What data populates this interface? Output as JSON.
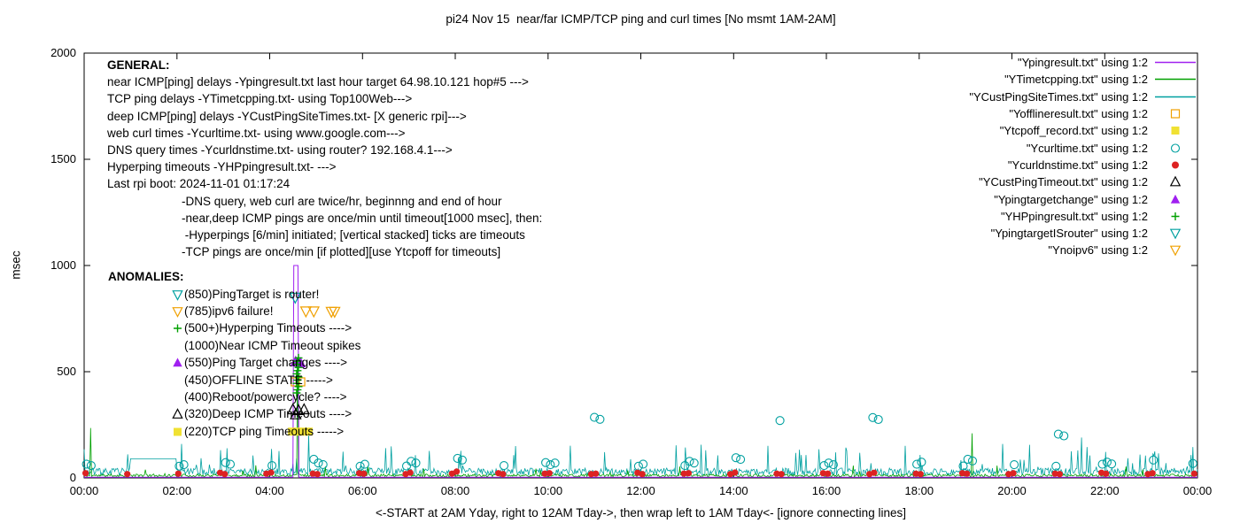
{
  "chart_data": {
    "type": "line",
    "title": "pi24 Nov 15  near/far ICMP/TCP ping and curl times [No msmt 1AM-2AM]",
    "ylabel": "msec",
    "xlabel": "<-START at 2AM Yday, right to 12AM Tday->, then wrap left to 1AM Tday<- [ignore connecting lines]",
    "xlim": [
      0,
      24
    ],
    "ylim": [
      0,
      2000
    ],
    "grid": false,
    "no_measurement_window": "1AM-2AM",
    "xticks": {
      "positions": [
        0,
        2,
        4,
        6,
        8,
        10,
        12,
        14,
        16,
        18,
        20,
        22,
        24
      ],
      "labels": [
        "00:00",
        "02:00",
        "04:00",
        "06:00",
        "08:00",
        "10:00",
        "12:00",
        "14:00",
        "16:00",
        "18:00",
        "20:00",
        "22:00",
        "00:00"
      ]
    },
    "yticks": [
      0,
      500,
      1000,
      1500,
      2000
    ],
    "legend": {
      "position": "top-right",
      "entries": [
        {
          "label": "\"Ypingresult.txt\" using 1:2",
          "sample": "line",
          "color": "#a020f0"
        },
        {
          "label": "\"YTimetcpping.txt\" using 1:2",
          "sample": "line",
          "color": "#00a000"
        },
        {
          "label": "\"YCustPingSiteTimes.txt\" using 1:2",
          "sample": "line",
          "color": "#00a0a0"
        },
        {
          "label": "\"Yofflineresult.txt\" using 1:2",
          "sample": "square-open",
          "color": "#f0a000"
        },
        {
          "label": "\"Ytcpoff_record.txt\" using 1:2",
          "sample": "square-filled",
          "color": "#f0e132"
        },
        {
          "label": "\"Ycurltime.txt\" using 1:2",
          "sample": "circle-open",
          "color": "#00a0a0"
        },
        {
          "label": "\"Ycurldnstime.txt\" using 1:2",
          "sample": "circle-filled",
          "color": "#dd2222"
        },
        {
          "label": "\"YCustPingTimeout.txt\" using 1:2",
          "sample": "triangle-up-open",
          "color": "#000000"
        },
        {
          "label": "\"Ypingtargetchange\" using 1:2",
          "sample": "triangle-up-filled",
          "color": "#a020f0"
        },
        {
          "label": "\"YHPpingresult.txt\" using 1:2",
          "sample": "plus",
          "color": "#00a000"
        },
        {
          "label": "\"YpingtargetISrouter\" using 1:2",
          "sample": "triangle-down-open",
          "color": "#00a0a0"
        },
        {
          "label": "\"Ynoipv6\" using 1:2",
          "sample": "triangle-down-open",
          "color": "#f0a000"
        }
      ]
    },
    "series": [
      {
        "id": "deep-icmp-line",
        "name": "YCustPingSiteTimes.txt",
        "type": "line",
        "color": "#00a0a0",
        "width": 0.8,
        "noise": {
          "seed": 7,
          "step": 0.02,
          "base": 12,
          "amp": 34,
          "spike_chance": 0.07,
          "spike_amp": 125
        },
        "gap": [
          1.0,
          2.0,
          90
        ],
        "spikes": [
          [
            2.1,
            160
          ],
          [
            4.85,
            205
          ],
          [
            6.5,
            140
          ],
          [
            9.3,
            150
          ],
          [
            13.4,
            130
          ],
          [
            16.2,
            120
          ],
          [
            19.8,
            160
          ],
          [
            21.5,
            190
          ],
          [
            23.9,
            145
          ]
        ]
      },
      {
        "id": "tcp-ping-line",
        "name": "YTimetcpping.txt",
        "type": "line",
        "color": "#00a000",
        "width": 0.8,
        "noise": {
          "seed": 11,
          "step": 0.02,
          "base": 5,
          "amp": 13,
          "spike_chance": 0.02,
          "spike_amp": 55
        },
        "spikes": [
          [
            0.13,
            235
          ],
          [
            4.6,
            555
          ],
          [
            19.15,
            210
          ]
        ]
      },
      {
        "id": "near-icmp-line",
        "name": "Ypingresult.txt",
        "type": "line",
        "color": "#a020f0",
        "width": 1,
        "points": [
          [
            0,
            3
          ],
          [
            4.5,
            3
          ],
          [
            4.52,
            1000
          ],
          [
            4.61,
            1000
          ],
          [
            4.63,
            3
          ],
          [
            24,
            3
          ]
        ]
      },
      {
        "id": "curl-circles",
        "name": "Ycurltime.txt",
        "type": "scatter",
        "marker": "circle-open",
        "color": "#00a0a0",
        "size": 9,
        "points": [
          [
            0.05,
            65
          ],
          [
            0.15,
            58
          ],
          [
            2.05,
            55
          ],
          [
            2.15,
            62
          ],
          [
            3.05,
            72
          ],
          [
            3.15,
            64
          ],
          [
            4.05,
            58
          ],
          [
            4.95,
            88
          ],
          [
            5.05,
            70
          ],
          [
            5.15,
            63
          ],
          [
            5.95,
            55
          ],
          [
            6.05,
            64
          ],
          [
            6.95,
            56
          ],
          [
            7.05,
            78
          ],
          [
            7.15,
            70
          ],
          [
            8.05,
            92
          ],
          [
            8.15,
            84
          ],
          [
            9.05,
            58
          ],
          [
            9.95,
            72
          ],
          [
            10.05,
            62
          ],
          [
            10.15,
            70
          ],
          [
            11.0,
            285
          ],
          [
            11.12,
            276
          ],
          [
            11.95,
            55
          ],
          [
            12.05,
            65
          ],
          [
            12.95,
            58
          ],
          [
            13.05,
            78
          ],
          [
            13.15,
            70
          ],
          [
            14.05,
            95
          ],
          [
            14.15,
            87
          ],
          [
            15.0,
            270
          ],
          [
            15.95,
            58
          ],
          [
            16.05,
            70
          ],
          [
            16.15,
            62
          ],
          [
            17.0,
            284
          ],
          [
            17.12,
            275
          ],
          [
            17.95,
            64
          ],
          [
            18.05,
            74
          ],
          [
            18.95,
            56
          ],
          [
            19.05,
            88
          ],
          [
            19.15,
            80
          ],
          [
            20.05,
            62
          ],
          [
            20.95,
            55
          ],
          [
            21.0,
            206
          ],
          [
            21.12,
            198
          ],
          [
            21.95,
            64
          ],
          [
            22.05,
            74
          ],
          [
            22.15,
            66
          ],
          [
            23.05,
            84
          ],
          [
            23.9,
            68
          ]
        ]
      },
      {
        "id": "dns-dots",
        "name": "Ycurldnstime.txt",
        "type": "scatter",
        "marker": "circle-filled",
        "color": "#dd2222",
        "size": 8,
        "points": [
          [
            0.03,
            22
          ],
          [
            0.93,
            18
          ],
          [
            2.03,
            20
          ],
          [
            2.93,
            24
          ],
          [
            3.03,
            18
          ],
          [
            3.93,
            20
          ],
          [
            4.03,
            25
          ],
          [
            4.93,
            20
          ],
          [
            5.03,
            18
          ],
          [
            5.93,
            22
          ],
          [
            6.03,
            20
          ],
          [
            6.93,
            18
          ],
          [
            7.03,
            24
          ],
          [
            7.93,
            20
          ],
          [
            8.03,
            30
          ],
          [
            8.93,
            22
          ],
          [
            9.03,
            18
          ],
          [
            9.93,
            20
          ],
          [
            10.03,
            22
          ],
          [
            10.93,
            18
          ],
          [
            11.03,
            20
          ],
          [
            11.93,
            24
          ],
          [
            12.03,
            18
          ],
          [
            12.93,
            20
          ],
          [
            13.03,
            22
          ],
          [
            13.93,
            18
          ],
          [
            14.03,
            25
          ],
          [
            14.93,
            20
          ],
          [
            15.03,
            18
          ],
          [
            15.93,
            22
          ],
          [
            16.03,
            20
          ],
          [
            16.93,
            18
          ],
          [
            17.03,
            24
          ],
          [
            17.93,
            20
          ],
          [
            18.03,
            18
          ],
          [
            18.93,
            22
          ],
          [
            19.03,
            20
          ],
          [
            19.93,
            18
          ],
          [
            20.03,
            22
          ],
          [
            20.93,
            20
          ],
          [
            21.03,
            18
          ],
          [
            21.93,
            24
          ],
          [
            22.03,
            20
          ],
          [
            22.93,
            18
          ],
          [
            23.03,
            22
          ],
          [
            23.93,
            20
          ]
        ]
      },
      {
        "id": "offline-squares",
        "name": "Yofflineresult.txt",
        "type": "scatter",
        "marker": "square-open",
        "color": "#f0a000",
        "size": 9,
        "points": [
          [
            4.55,
            452
          ],
          [
            4.67,
            452
          ]
        ]
      },
      {
        "id": "tcpoff-squares",
        "name": "Ytcpoff_record.txt",
        "type": "scatter",
        "marker": "square-filled",
        "color": "#f0e132",
        "size": 9,
        "points": [
          [
            4.48,
            218
          ],
          [
            4.6,
            218
          ],
          [
            4.72,
            218
          ],
          [
            4.84,
            218
          ]
        ]
      },
      {
        "id": "deep-timeout-triangles",
        "name": "YCustPingTimeout.txt",
        "type": "scatter",
        "marker": "triangle-up-open",
        "color": "#000000",
        "size": 10,
        "points": [
          [
            4.5,
            322
          ],
          [
            4.62,
            318
          ],
          [
            4.74,
            322
          ],
          [
            4.56,
            298
          ]
        ]
      },
      {
        "id": "pingtarget-change-triangles",
        "name": "Ypingtargetchange",
        "type": "scatter",
        "marker": "triangle-up-filled",
        "color": "#a020f0",
        "size": 11,
        "points": [
          [
            4.56,
            548
          ],
          [
            4.66,
            542
          ]
        ]
      },
      {
        "id": "hyperping-pluses",
        "name": "YHPpingresult.txt",
        "type": "scatter",
        "marker": "plus",
        "color": "#00a000",
        "size": 9,
        "points": [
          [
            4.58,
            400
          ],
          [
            4.6,
            415
          ],
          [
            4.62,
            430
          ],
          [
            4.58,
            445
          ],
          [
            4.6,
            460
          ],
          [
            4.62,
            475
          ],
          [
            4.58,
            490
          ],
          [
            4.6,
            505
          ],
          [
            4.62,
            520
          ],
          [
            4.58,
            535
          ],
          [
            4.6,
            550
          ],
          [
            4.62,
            565
          ]
        ]
      },
      {
        "id": "pingtarget-isrouter-triangles",
        "name": "YpingtargetISrouter",
        "type": "scatter",
        "marker": "triangle-down-open",
        "color": "#00a0a0",
        "size": 10,
        "points": [
          [
            4.55,
            850
          ]
        ]
      },
      {
        "id": "noipv6-triangles",
        "name": "Ynoipv6",
        "type": "scatter",
        "marker": "triangle-down-open",
        "color": "#f0a000",
        "size": 10,
        "points": [
          [
            4.78,
            785
          ],
          [
            4.95,
            785
          ],
          [
            5.33,
            783
          ],
          [
            5.4,
            783
          ]
        ]
      }
    ]
  },
  "notes": {
    "general_title": "GENERAL:",
    "general_lines": [
      "near ICMP[ping] delays -Ypingresult.txt last hour target 64.98.10.121 hop#5 --->",
      "TCP ping delays -YTimetcpping.txt- using Top100Web--->",
      "deep ICMP[ping] delays -YCustPingSiteTimes.txt- [X generic rpi]--->",
      "web curl times -Ycurltime.txt- using www.google.com--->",
      "DNS query times -Ycurldnstime.txt- using router? 192.168.4.1--->",
      "Hyperping timeouts -YHPpingresult.txt- --->",
      "Last rpi boot: 2024-11-01 01:17:24"
    ],
    "general_sub_lines": [
      "-DNS query, web curl are twice/hr, beginnng and end of hour",
      "-near,deep ICMP pings are once/min until timeout[1000 msec], then:",
      " -Hyperpings [6/min] initiated; [vertical stacked] ticks are timeouts",
      "-TCP pings are once/min [if plotted][use Ytcpoff for timeouts]"
    ],
    "anomalies_title": "ANOMALIES:",
    "anomalies": [
      {
        "marker": "triangle-down-open",
        "color": "#00a0a0",
        "text": "(850)PingTarget is router!"
      },
      {
        "marker": "triangle-down-open",
        "color": "#f0a000",
        "text": "(785)ipv6 failure!"
      },
      {
        "marker": "plus",
        "color": "#00a000",
        "text": "(500+)Hyperping Timeouts ---->"
      },
      {
        "marker": null,
        "color": null,
        "text": "(1000)Near ICMP Timeout spikes"
      },
      {
        "marker": "triangle-up-filled",
        "color": "#a020f0",
        "text": "(550)Ping Target changes ---->"
      },
      {
        "marker": null,
        "color": null,
        "text": "(450)OFFLINE STATE ----->"
      },
      {
        "marker": null,
        "color": null,
        "text": "(400)Reboot/powercycle? ---->"
      },
      {
        "marker": "triangle-up-open",
        "color": "#000000",
        "text": "(320)Deep ICMP Timeouts ---->"
      },
      {
        "marker": "square-filled",
        "color": "#f0e132",
        "text": "(220)TCP ping Timeouts ----->"
      }
    ]
  }
}
